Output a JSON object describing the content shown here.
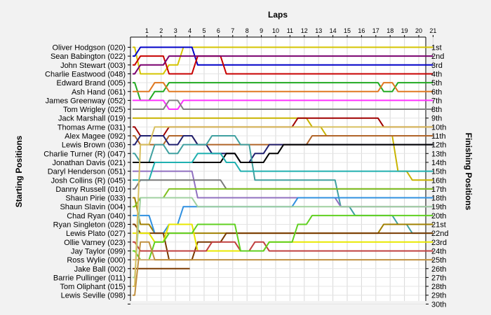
{
  "chart_data": {
    "type": "line",
    "title": "Laps",
    "ylabel_left": "Starting Positions",
    "ylabel_right": "Finishing Positions",
    "laps": [
      1,
      2,
      3,
      4,
      5,
      6,
      7,
      8,
      9,
      10,
      11,
      12,
      13,
      14,
      15,
      16,
      17,
      18,
      19,
      20,
      21
    ],
    "finish_labels": [
      "1st",
      "2nd",
      "3rd",
      "4th",
      "5th",
      "6th",
      "7th",
      "8th",
      "9th",
      "10th",
      "11th",
      "12th",
      "13th",
      "14th",
      "15th",
      "16th",
      "17th",
      "18th",
      "19th",
      "20th",
      "21st",
      "22nd",
      "23rd",
      "24th",
      "25th",
      "26th",
      "27th",
      "28th",
      "29th",
      "30th"
    ],
    "ylim": [
      1,
      30
    ],
    "series": [
      {
        "name": "Oliver Hodgson (020)",
        "color": "#d4c400",
        "positions": [
          1,
          4,
          4,
          3,
          1,
          1,
          1,
          1,
          1,
          1,
          1,
          1,
          1,
          1,
          1,
          1,
          1,
          1,
          1,
          1,
          1,
          1
        ]
      },
      {
        "name": "Sean Babington (022)",
        "color": "#0000c8",
        "positions": [
          2,
          1,
          1,
          1,
          1,
          3,
          3,
          3,
          3,
          3,
          3,
          3,
          3,
          3,
          3,
          3,
          3,
          3,
          3,
          3,
          3,
          3
        ]
      },
      {
        "name": "John Stewart (003)",
        "color": "#c80000",
        "positions": [
          3,
          2,
          2,
          4,
          4,
          2,
          2,
          4,
          4,
          4,
          4,
          4,
          4,
          4,
          4,
          4,
          4,
          4,
          4,
          4,
          4,
          4
        ]
      },
      {
        "name": "Charlie Eastwood (048)",
        "color": "#7a006e",
        "positions": [
          4,
          3,
          3,
          2,
          2,
          2,
          2,
          2,
          2,
          2,
          2,
          2,
          2,
          2,
          2,
          2,
          2,
          2,
          2,
          2,
          2,
          2
        ]
      },
      {
        "name": "Edward Brand (005)",
        "color": "#22aa22",
        "positions": [
          5,
          7,
          6,
          5,
          5,
          5,
          5,
          5,
          5,
          5,
          5,
          5,
          5,
          5,
          5,
          5,
          5,
          5,
          6,
          5,
          5,
          5
        ]
      },
      {
        "name": "Ash Hand (061)",
        "color": "#e07820",
        "positions": [
          6,
          6,
          5,
          6,
          6,
          6,
          6,
          6,
          6,
          6,
          6,
          6,
          6,
          6,
          6,
          6,
          6,
          6,
          5,
          6,
          6,
          6
        ]
      },
      {
        "name": "James Greenway (052)",
        "color": "#ff30ff",
        "positions": [
          7,
          7,
          7,
          8,
          7,
          7,
          7,
          7,
          7,
          7,
          7,
          7,
          7,
          7,
          7,
          7,
          7,
          7,
          7,
          7,
          7,
          7
        ]
      },
      {
        "name": "Tom Wrigley (025)",
        "color": "#808080",
        "positions": [
          8,
          8,
          8,
          7,
          8,
          8,
          8,
          8,
          8,
          8,
          8,
          8,
          8,
          8,
          8,
          8,
          8,
          8,
          8,
          8,
          8,
          8
        ]
      },
      {
        "name": "Jack Marshall (019)",
        "color": "#c8b400",
        "positions": [
          9,
          9,
          9,
          9,
          9,
          9,
          9,
          9,
          9,
          9,
          9,
          9,
          9,
          10,
          11,
          11,
          11,
          11,
          11,
          15,
          16,
          16
        ]
      },
      {
        "name": "Thomas Arme (031)",
        "color": "#a00000",
        "positions": [
          10,
          11,
          11,
          10,
          10,
          10,
          10,
          10,
          10,
          10,
          10,
          10,
          9,
          9,
          9,
          9,
          9,
          9,
          10,
          10,
          10,
          10
        ]
      },
      {
        "name": "Alex Magee (092)",
        "color": "#b06428",
        "positions": [
          11,
          12,
          12,
          11,
          11,
          12,
          12,
          12,
          12,
          12,
          12,
          12,
          12,
          11,
          11,
          11,
          11,
          11,
          11,
          11,
          11,
          11
        ]
      },
      {
        "name": "Lewis Brown (036)",
        "color": "#202070",
        "positions": [
          12,
          11,
          11,
          12,
          11,
          12,
          13,
          13,
          14,
          13,
          12,
          12,
          12,
          12,
          12,
          12,
          12,
          12,
          12,
          12,
          12,
          12
        ]
      },
      {
        "name": "Charlie Turner (R) (047)",
        "color": "#40a0a0",
        "positions": [
          13,
          14,
          12,
          13,
          12,
          12,
          11,
          11,
          12,
          16,
          16,
          16,
          16,
          16,
          16,
          19,
          20,
          20,
          20,
          21,
          22,
          22
        ]
      },
      {
        "name": "Jonathan Davis (021)",
        "color": "#000000",
        "positions": [
          14,
          14,
          14,
          14,
          14,
          14,
          14,
          13,
          14,
          14,
          13,
          12,
          12,
          12,
          12,
          12,
          12,
          12,
          12,
          12,
          12,
          12
        ]
      },
      {
        "name": "Daryl Henderson (051)",
        "color": "#9070c0",
        "positions": [
          15,
          15,
          15,
          15,
          15,
          18,
          18,
          18,
          18,
          18,
          18,
          18,
          18,
          18,
          18,
          19,
          19,
          19,
          19,
          19,
          19,
          19
        ]
      },
      {
        "name": "Josh Collins (R) (045)",
        "color": "#20b0b0",
        "positions": [
          16,
          16,
          14,
          14,
          14,
          13,
          13,
          14,
          15,
          15,
          15,
          15,
          15,
          15,
          15,
          15,
          15,
          15,
          15,
          15,
          15,
          15
        ]
      },
      {
        "name": "Danny Russell (010)",
        "color": "#7a7a7a",
        "positions": [
          17,
          16,
          16,
          16,
          16,
          16,
          16,
          17,
          17,
          17,
          17,
          17,
          17,
          17,
          17,
          17,
          17,
          17,
          17,
          17,
          17,
          17
        ]
      },
      {
        "name": "Shaun Pirie (033)",
        "color": "#a08000",
        "positions": [
          18,
          21,
          22,
          22,
          22,
          22,
          22,
          22,
          22,
          22,
          22,
          22,
          22,
          22,
          22,
          22,
          22,
          22,
          21,
          21,
          21,
          21
        ]
      },
      {
        "name": "Shaun Slavin (004)",
        "color": "#80c020",
        "positions": [
          19,
          18,
          18,
          17,
          17,
          17,
          17,
          17,
          17,
          17,
          17,
          17,
          17,
          17,
          17,
          17,
          17,
          17,
          17,
          17,
          17,
          17
        ]
      },
      {
        "name": "Chad Ryan (040)",
        "color": "#3090e0",
        "positions": [
          20,
          20,
          22,
          21,
          19,
          19,
          19,
          19,
          19,
          19,
          19,
          19,
          18,
          18,
          18,
          18,
          18,
          18,
          18,
          18,
          18,
          18
        ]
      },
      {
        "name": "Ryan Singleton (028)",
        "color": "#7a3a00",
        "positions": [
          21,
          22,
          22,
          25,
          25,
          23,
          23,
          22,
          22,
          22,
          22,
          22,
          22,
          22,
          22,
          22,
          22,
          22,
          22,
          22,
          22,
          22
        ]
      },
      {
        "name": "Lewis Plato (027)",
        "color": "#e8e800",
        "positions": [
          22,
          22,
          23,
          21,
          21,
          24,
          24,
          24,
          24,
          24,
          23,
          23,
          23,
          23,
          23,
          23,
          23,
          23,
          23,
          23,
          23,
          23
        ]
      },
      {
        "name": "Ollie Varney (023)",
        "color": "#c04040",
        "positions": [
          23,
          24,
          24,
          24,
          24,
          24,
          23,
          23,
          24,
          23,
          24,
          24,
          24,
          24,
          24,
          24,
          24,
          24,
          24,
          24,
          24,
          24
        ]
      },
      {
        "name": "Jay Taylor (099)",
        "color": "#60d020",
        "positions": [
          24,
          25,
          23,
          22,
          22,
          21,
          21,
          21,
          24,
          24,
          23,
          23,
          21,
          20,
          20,
          20,
          20,
          20,
          20,
          20,
          20,
          20
        ]
      },
      {
        "name": "Ross Wylie (000)",
        "color": "#d8b080",
        "positions": [
          25,
          25,
          25,
          25,
          25
        ]
      },
      {
        "name": "Jake Ball (002)",
        "color": "#7a3a00",
        "positions": [
          26,
          26,
          26,
          26,
          26
        ]
      },
      {
        "name": "Barrie Pullinger (011)",
        "color": "#a0d0a0",
        "positions": [
          27,
          18,
          18,
          18,
          18,
          19,
          19,
          19,
          19,
          19,
          19,
          19,
          19,
          19,
          19,
          19,
          19,
          19,
          19,
          19,
          19,
          19
        ]
      },
      {
        "name": "Tom Oliphant (015)",
        "color": "#d8c060",
        "positions": [
          28,
          12,
          10,
          10,
          10,
          10,
          10,
          10,
          10,
          10,
          10,
          10,
          10,
          10,
          10,
          10,
          10,
          10,
          10,
          10,
          10,
          10
        ]
      },
      {
        "name": "Lewis Seville (098)",
        "color": "#c09040",
        "positions": [
          29,
          23,
          25,
          25,
          25,
          25,
          25,
          25,
          25,
          25,
          25,
          25,
          25,
          25,
          25,
          25,
          25,
          25,
          25,
          25,
          25,
          25
        ]
      }
    ]
  }
}
